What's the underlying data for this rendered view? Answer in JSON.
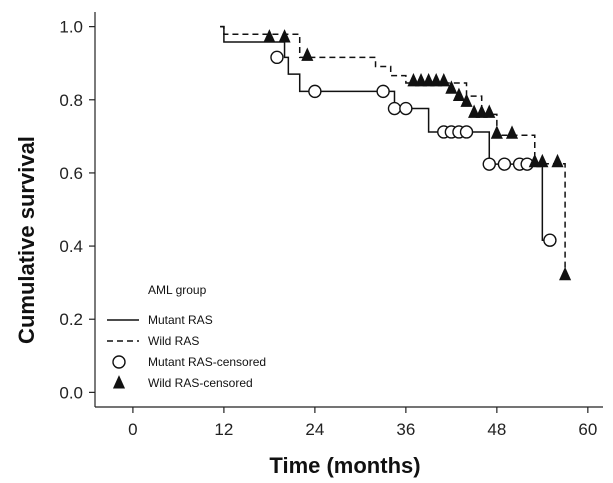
{
  "chart_data": {
    "type": "line",
    "xlabel": "Time (months)",
    "ylabel": "Cumulative survival",
    "xlim": [
      -5,
      62
    ],
    "ylim": [
      -0.04,
      1.04
    ],
    "xticks": [
      0,
      12,
      24,
      36,
      48,
      60
    ],
    "yticks": [
      0.0,
      0.2,
      0.4,
      0.6,
      0.8,
      1.0
    ],
    "xtick_labels": [
      "0",
      "12",
      "24",
      "36",
      "48",
      "60"
    ],
    "ytick_labels": [
      "0.0",
      "0.2",
      "0.4",
      "0.6",
      "0.8",
      "1.0"
    ],
    "grid": false,
    "legend": {
      "placement": "bottom-left",
      "title": "AML group",
      "entries": [
        {
          "label": "Mutant RAS",
          "marker": "solid-line"
        },
        {
          "label": "Wild RAS",
          "marker": "dashed-line"
        },
        {
          "label": "Mutant RAS-censored",
          "marker": "open-circle"
        },
        {
          "label": "Wild RAS-censored",
          "marker": "filled-triangle"
        }
      ]
    },
    "series": [
      {
        "name": "Mutant RAS",
        "style": "solid",
        "steps": [
          [
            11.5,
            1.0
          ],
          [
            12,
            0.958
          ],
          [
            19,
            0.958
          ],
          [
            20,
            0.916
          ],
          [
            20.5,
            0.87
          ],
          [
            22,
            0.87
          ],
          [
            22,
            0.823
          ],
          [
            33.5,
            0.823
          ],
          [
            34.5,
            0.776
          ],
          [
            39,
            0.776
          ],
          [
            39,
            0.712
          ],
          [
            47,
            0.712
          ],
          [
            47,
            0.624
          ],
          [
            54,
            0.624
          ],
          [
            54,
            0.416
          ],
          [
            55,
            0.416
          ]
        ],
        "censored": [
          [
            19,
            0.916
          ],
          [
            24,
            0.823
          ],
          [
            33,
            0.823
          ],
          [
            34.5,
            0.776
          ],
          [
            36,
            0.776
          ],
          [
            41,
            0.712
          ],
          [
            42,
            0.712
          ],
          [
            43,
            0.712
          ],
          [
            44,
            0.712
          ],
          [
            47,
            0.624
          ],
          [
            49,
            0.624
          ],
          [
            51,
            0.624
          ],
          [
            52,
            0.624
          ],
          [
            55,
            0.416
          ]
        ]
      },
      {
        "name": "Wild RAS",
        "style": "dashed",
        "steps": [
          [
            11.5,
            1.0
          ],
          [
            12,
            0.979
          ],
          [
            21.5,
            0.979
          ],
          [
            22,
            0.916
          ],
          [
            32,
            0.916
          ],
          [
            32,
            0.891
          ],
          [
            34,
            0.891
          ],
          [
            34,
            0.866
          ],
          [
            36,
            0.866
          ],
          [
            36,
            0.846
          ],
          [
            44,
            0.846
          ],
          [
            44,
            0.81
          ],
          [
            46,
            0.81
          ],
          [
            46,
            0.76
          ],
          [
            48,
            0.76
          ],
          [
            48,
            0.703
          ],
          [
            53,
            0.703
          ],
          [
            53,
            0.625
          ],
          [
            57,
            0.625
          ],
          [
            57,
            0.316
          ]
        ],
        "censored": [
          [
            18,
            0.966
          ],
          [
            20,
            0.966
          ],
          [
            23,
            0.916
          ],
          [
            37,
            0.846
          ],
          [
            38,
            0.846
          ],
          [
            39,
            0.846
          ],
          [
            40,
            0.846
          ],
          [
            41,
            0.846
          ],
          [
            42,
            0.826
          ],
          [
            43,
            0.806
          ],
          [
            44,
            0.79
          ],
          [
            45,
            0.76
          ],
          [
            46,
            0.76
          ],
          [
            47,
            0.76
          ],
          [
            48,
            0.703
          ],
          [
            50,
            0.703
          ],
          [
            53,
            0.625
          ],
          [
            54,
            0.625
          ],
          [
            56,
            0.625
          ],
          [
            57,
            0.316
          ]
        ]
      }
    ]
  },
  "colors": {
    "line": "#111111",
    "axis": "#222222"
  }
}
